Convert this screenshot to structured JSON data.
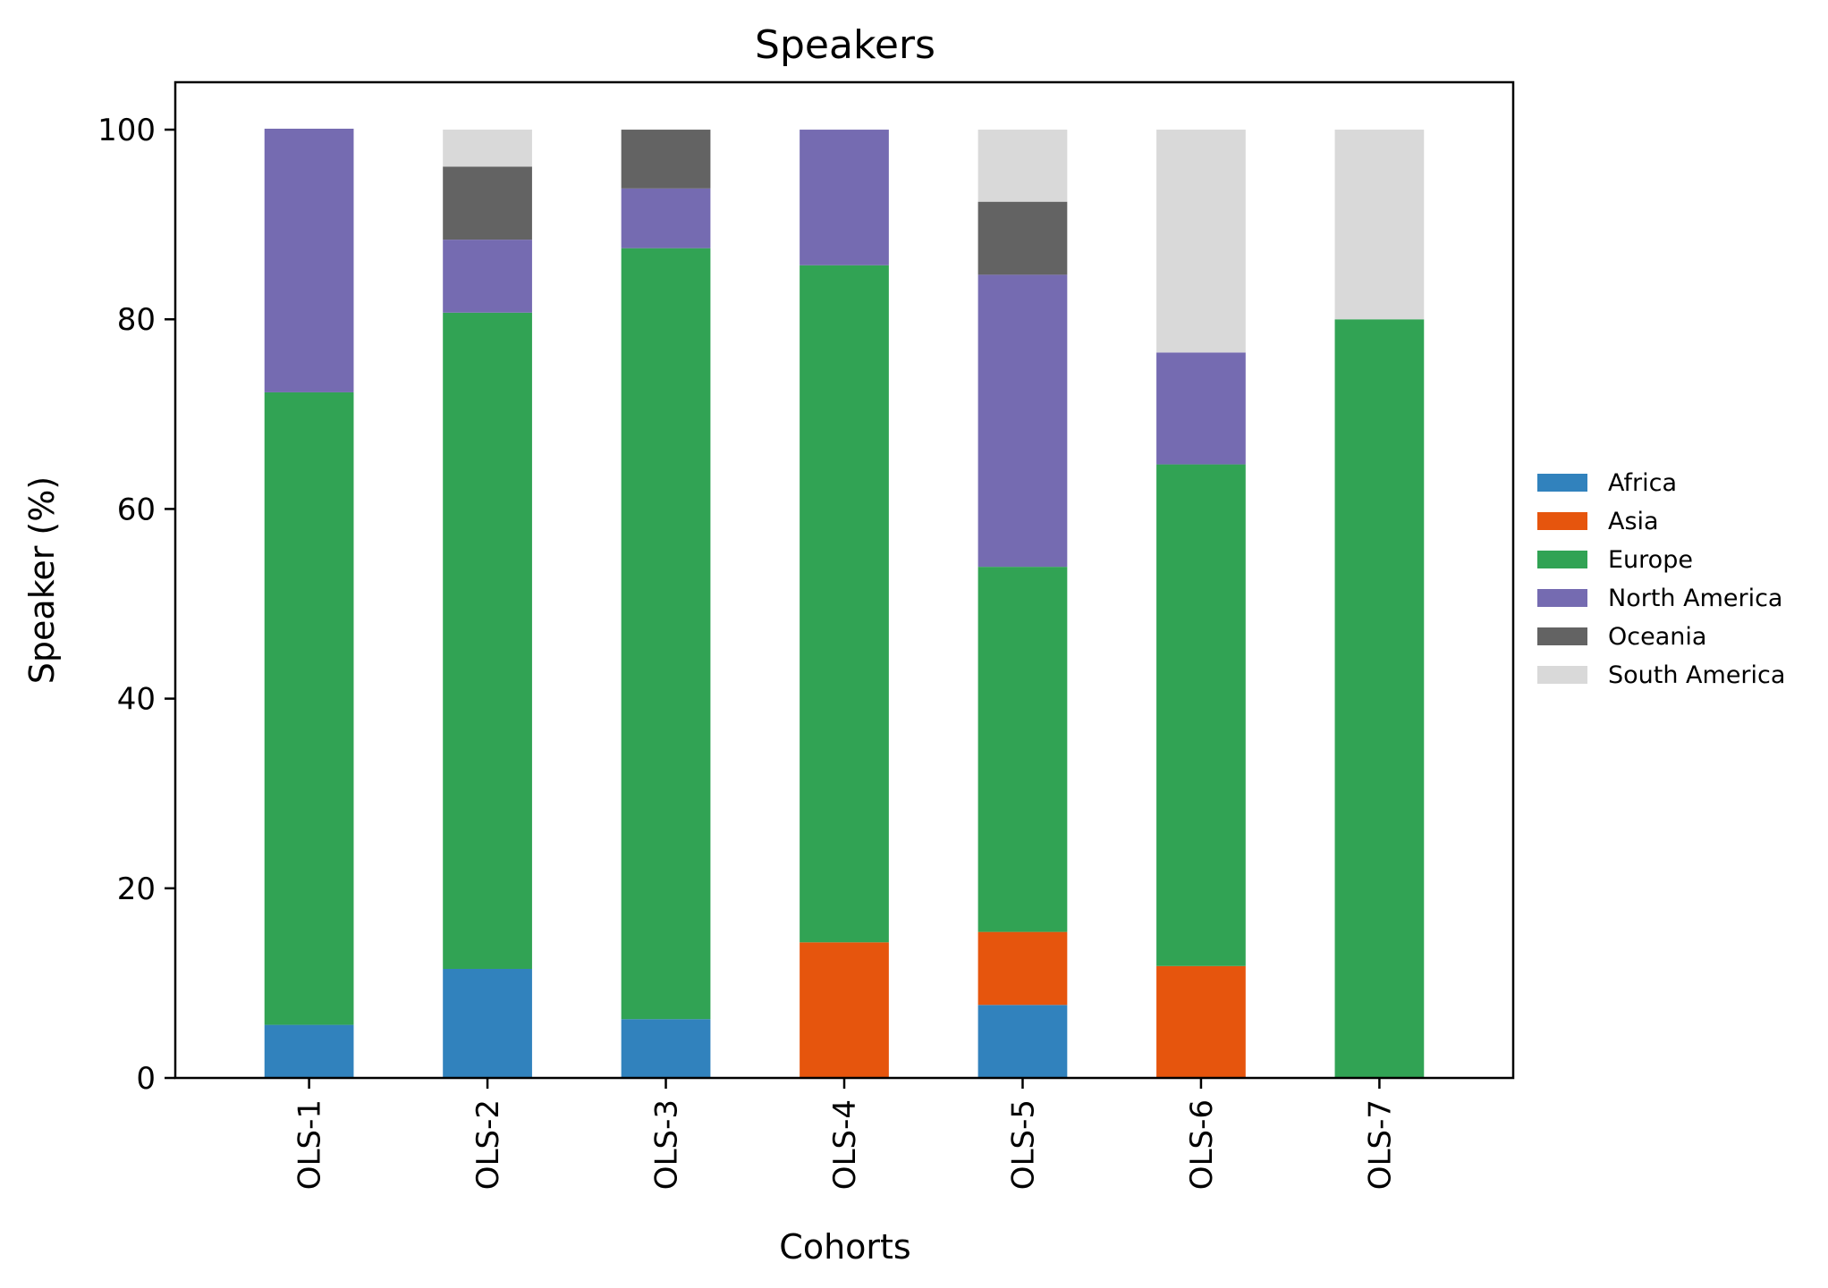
{
  "chart_data": {
    "type": "bar",
    "stacked": true,
    "title": "Speakers",
    "xlabel": "Cohorts",
    "ylabel": "Speaker (%)",
    "ylim": [
      0,
      105
    ],
    "yticks": [
      0,
      20,
      40,
      60,
      80,
      100
    ],
    "categories": [
      "OLS-1",
      "OLS-2",
      "OLS-3",
      "OLS-4",
      "OLS-5",
      "OLS-6",
      "OLS-7"
    ],
    "series": [
      {
        "name": "Africa",
        "color": "#3182bd",
        "values": [
          5.6,
          11.5,
          6.2,
          0,
          7.7,
          0,
          0
        ]
      },
      {
        "name": "Asia",
        "color": "#e6550d",
        "values": [
          0,
          0,
          0,
          14.3,
          7.7,
          11.8,
          0
        ]
      },
      {
        "name": "Europe",
        "color": "#31a354",
        "values": [
          66.7,
          69.2,
          81.3,
          71.4,
          38.5,
          52.9,
          80
        ]
      },
      {
        "name": "North America",
        "color": "#756bb1",
        "values": [
          27.8,
          7.7,
          6.3,
          14.3,
          30.8,
          11.8,
          0
        ]
      },
      {
        "name": "Oceania",
        "color": "#636363",
        "values": [
          0,
          7.7,
          6.2,
          0,
          7.7,
          0,
          0
        ]
      },
      {
        "name": "South America",
        "color": "#d9d9d9",
        "values": [
          0,
          3.9,
          0,
          0,
          7.6,
          23.5,
          20
        ]
      }
    ],
    "grid": false,
    "legend": "center-right"
  }
}
